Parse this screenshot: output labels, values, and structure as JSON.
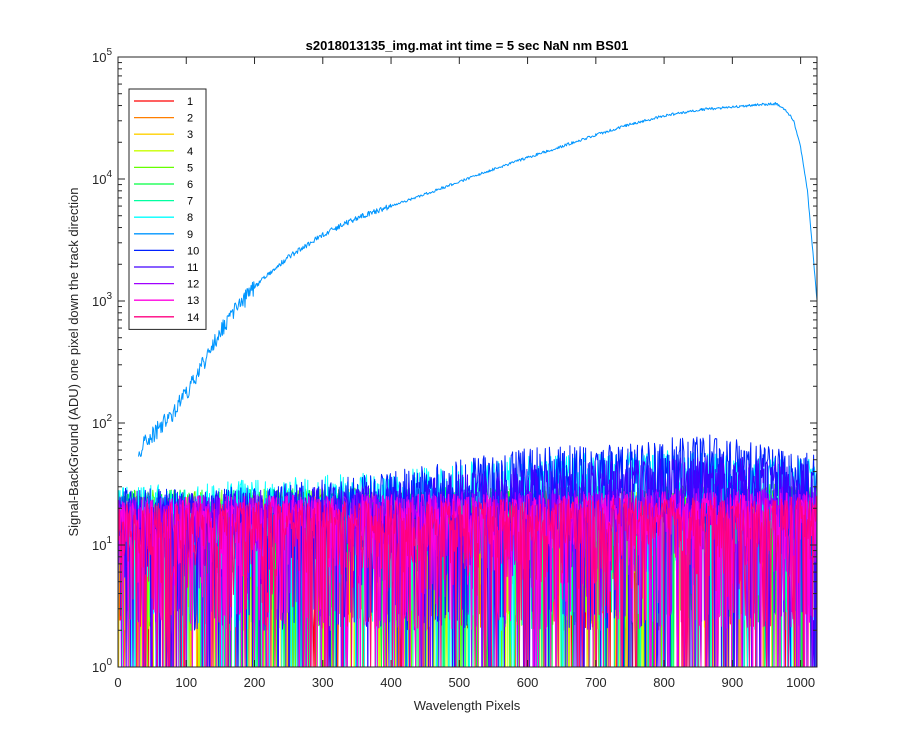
{
  "chart_data": {
    "type": "line",
    "title": "s2018013135_img.mat int time = 5 sec  NaN nm BS01",
    "xlabel": "Wavelength Pixels",
    "ylabel": "Signal-BackGround (ADU) one pixel down the track direction",
    "xlim": [
      0,
      1024
    ],
    "ylim": [
      1,
      100000
    ],
    "yscale": "log",
    "x_ticks": [
      "0",
      "100",
      "200",
      "300",
      "400",
      "500",
      "600",
      "700",
      "800",
      "900",
      "1000"
    ],
    "y_ticks": [
      {
        "base": "10",
        "exp": "0"
      },
      {
        "base": "10",
        "exp": "1"
      },
      {
        "base": "10",
        "exp": "2"
      },
      {
        "base": "10",
        "exp": "3"
      },
      {
        "base": "10",
        "exp": "4"
      },
      {
        "base": "10",
        "exp": "5"
      }
    ],
    "legend_position": "top-left",
    "grid": false,
    "series": [
      {
        "name": "1",
        "color": "#ff0000",
        "kind": "noise",
        "envelope": [
          [
            0,
            25
          ],
          [
            1024,
            30
          ]
        ]
      },
      {
        "name": "2",
        "color": "#ff7f00",
        "kind": "noise",
        "envelope": [
          [
            0,
            25
          ],
          [
            1024,
            30
          ]
        ]
      },
      {
        "name": "3",
        "color": "#ffd000",
        "kind": "noise",
        "envelope": [
          [
            0,
            25
          ],
          [
            1024,
            30
          ]
        ]
      },
      {
        "name": "4",
        "color": "#c8ff00",
        "kind": "noise",
        "envelope": [
          [
            0,
            25
          ],
          [
            1024,
            30
          ]
        ]
      },
      {
        "name": "5",
        "color": "#66ff00",
        "kind": "noise",
        "envelope": [
          [
            0,
            28
          ],
          [
            1024,
            32
          ]
        ]
      },
      {
        "name": "6",
        "color": "#00ff40",
        "kind": "noise",
        "envelope": [
          [
            0,
            28
          ],
          [
            1024,
            32
          ]
        ]
      },
      {
        "name": "7",
        "color": "#00ffa0",
        "kind": "noise",
        "envelope": [
          [
            0,
            25
          ],
          [
            1024,
            30
          ]
        ]
      },
      {
        "name": "8",
        "color": "#00ffff",
        "kind": "noise",
        "envelope": [
          [
            0,
            30
          ],
          [
            400,
            40
          ],
          [
            600,
            55
          ],
          [
            800,
            60
          ],
          [
            1024,
            50
          ]
        ]
      },
      {
        "name": "9",
        "color": "#0096ff",
        "kind": "signal",
        "points": [
          [
            30,
            60
          ],
          [
            50,
            80
          ],
          [
            80,
            120
          ],
          [
            100,
            180
          ],
          [
            130,
            350
          ],
          [
            160,
            700
          ],
          [
            200,
            1300
          ],
          [
            250,
            2300
          ],
          [
            300,
            3500
          ],
          [
            350,
            4800
          ],
          [
            400,
            6000
          ],
          [
            450,
            7500
          ],
          [
            500,
            9500
          ],
          [
            550,
            12000
          ],
          [
            600,
            15000
          ],
          [
            650,
            18500
          ],
          [
            700,
            23000
          ],
          [
            750,
            28000
          ],
          [
            800,
            33000
          ],
          [
            850,
            37000
          ],
          [
            900,
            39000
          ],
          [
            950,
            41000
          ],
          [
            965,
            41500
          ],
          [
            980,
            36000
          ],
          [
            990,
            30000
          ],
          [
            1000,
            18000
          ],
          [
            1010,
            8000
          ],
          [
            1018,
            2500
          ],
          [
            1024,
            1000
          ]
        ]
      },
      {
        "name": "10",
        "color": "#0020ff",
        "kind": "noise",
        "envelope": [
          [
            0,
            30
          ],
          [
            200,
            30
          ],
          [
            400,
            40
          ],
          [
            450,
            45
          ],
          [
            500,
            50
          ],
          [
            600,
            62
          ],
          [
            700,
            68
          ],
          [
            800,
            75
          ],
          [
            870,
            80
          ],
          [
            950,
            65
          ],
          [
            1024,
            55
          ]
        ]
      },
      {
        "name": "11",
        "color": "#4000ff",
        "kind": "noise",
        "envelope": [
          [
            0,
            25
          ],
          [
            400,
            32
          ],
          [
            600,
            45
          ],
          [
            800,
            52
          ],
          [
            900,
            55
          ],
          [
            1024,
            45
          ]
        ]
      },
      {
        "name": "12",
        "color": "#a000ff",
        "kind": "noise",
        "envelope": [
          [
            0,
            25
          ],
          [
            1024,
            30
          ]
        ]
      },
      {
        "name": "13",
        "color": "#ff00e0",
        "kind": "noise",
        "envelope": [
          [
            0,
            25
          ],
          [
            1024,
            28
          ]
        ]
      },
      {
        "name": "14",
        "color": "#ff0080",
        "kind": "noise",
        "envelope": [
          [
            0,
            22
          ],
          [
            1024,
            25
          ]
        ]
      }
    ]
  }
}
